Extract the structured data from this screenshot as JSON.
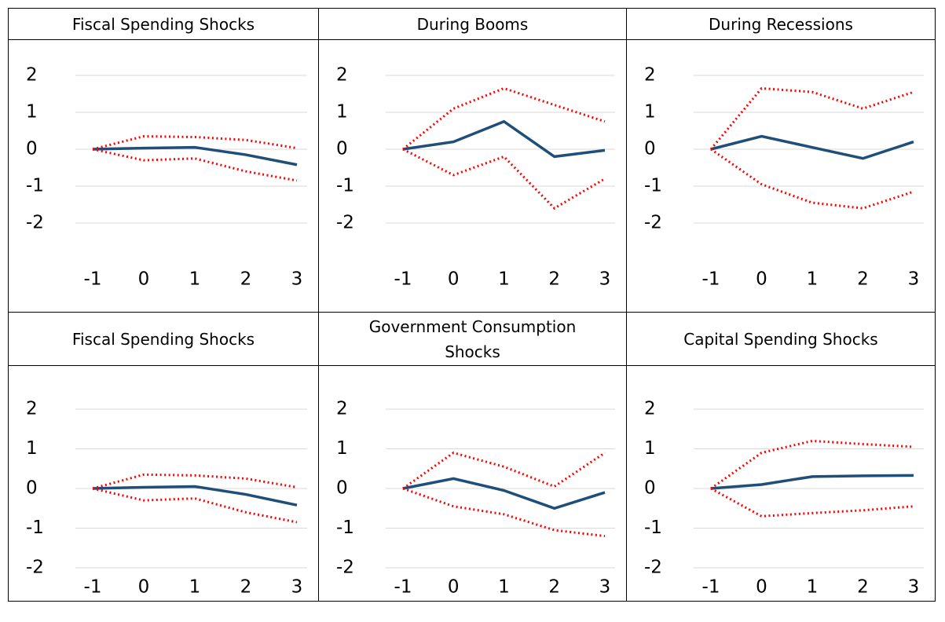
{
  "chart_data": [
    {
      "type": "line",
      "title": "Fiscal Spending Shocks",
      "categories": [
        "-1",
        "0",
        "1",
        "2",
        "3"
      ],
      "series": [
        {
          "color": "#1f4e79",
          "style": "solid",
          "values": [
            0,
            0.03,
            0.05,
            -0.15,
            -0.42
          ]
        },
        {
          "color": "#ff0000",
          "style": "dotted",
          "values": [
            0,
            0.35,
            0.33,
            0.25,
            0.03
          ]
        },
        {
          "color": "#ff0000",
          "style": "dotted",
          "values": [
            0,
            -0.3,
            -0.25,
            -0.6,
            -0.85
          ]
        }
      ],
      "ylim": [
        -2,
        2
      ],
      "yticks": [
        -2,
        -1,
        0,
        1,
        2
      ],
      "grid": true
    },
    {
      "type": "line",
      "title": "During Booms",
      "categories": [
        "-1",
        "0",
        "1",
        "2",
        "3"
      ],
      "series": [
        {
          "color": "#1f4e79",
          "style": "solid",
          "values": [
            0,
            0.2,
            0.75,
            -0.2,
            -0.03
          ]
        },
        {
          "color": "#ff0000",
          "style": "dotted",
          "values": [
            0,
            1.1,
            1.65,
            1.2,
            0.75
          ]
        },
        {
          "color": "#ff0000",
          "style": "dotted",
          "values": [
            0,
            -0.7,
            -0.2,
            -1.6,
            -0.8
          ]
        }
      ],
      "ylim": [
        -2,
        2
      ],
      "yticks": [
        -2,
        -1,
        0,
        1,
        2
      ],
      "grid": true
    },
    {
      "type": "line",
      "title": "During Recessions",
      "categories": [
        "-1",
        "0",
        "1",
        "2",
        "3"
      ],
      "series": [
        {
          "color": "#1f4e79",
          "style": "solid",
          "values": [
            0,
            0.35,
            0.05,
            -0.25,
            0.2
          ]
        },
        {
          "color": "#ff0000",
          "style": "dotted",
          "values": [
            0,
            1.65,
            1.55,
            1.1,
            1.55
          ]
        },
        {
          "color": "#ff0000",
          "style": "dotted",
          "values": [
            0,
            -0.95,
            -1.45,
            -1.6,
            -1.15
          ]
        }
      ],
      "ylim": [
        -2,
        2
      ],
      "yticks": [
        -2,
        -1,
        0,
        1,
        2
      ],
      "grid": true
    },
    {
      "type": "line",
      "title": "Fiscal Spending Shocks",
      "categories": [
        "-1",
        "0",
        "1",
        "2",
        "3"
      ],
      "series": [
        {
          "color": "#1f4e79",
          "style": "solid",
          "values": [
            0,
            0.03,
            0.05,
            -0.15,
            -0.42
          ]
        },
        {
          "color": "#ff0000",
          "style": "dotted",
          "values": [
            0,
            0.35,
            0.33,
            0.25,
            0.03
          ]
        },
        {
          "color": "#ff0000",
          "style": "dotted",
          "values": [
            0,
            -0.3,
            -0.25,
            -0.6,
            -0.85
          ]
        }
      ],
      "ylim": [
        -2,
        2
      ],
      "yticks": [
        -2,
        -1,
        0,
        1,
        2
      ],
      "grid": true
    },
    {
      "type": "line",
      "title": "Government Consumption Shocks",
      "categories": [
        "-1",
        "0",
        "1",
        "2",
        "3"
      ],
      "series": [
        {
          "color": "#1f4e79",
          "style": "solid",
          "values": [
            0,
            0.25,
            -0.05,
            -0.5,
            -0.1
          ]
        },
        {
          "color": "#ff0000",
          "style": "dotted",
          "values": [
            0,
            0.9,
            0.55,
            0.05,
            0.9
          ]
        },
        {
          "color": "#ff0000",
          "style": "dotted",
          "values": [
            0,
            -0.45,
            -0.65,
            -1.05,
            -1.2
          ]
        }
      ],
      "ylim": [
        -2,
        2
      ],
      "yticks": [
        -2,
        -1,
        0,
        1,
        2
      ],
      "grid": true
    },
    {
      "type": "line",
      "title": "Capital Spending Shocks",
      "categories": [
        "-1",
        "0",
        "1",
        "2",
        "3"
      ],
      "series": [
        {
          "color": "#1f4e79",
          "style": "solid",
          "values": [
            0,
            0.1,
            0.3,
            0.32,
            0.33
          ]
        },
        {
          "color": "#ff0000",
          "style": "dotted",
          "values": [
            0,
            0.9,
            1.2,
            1.12,
            1.05
          ]
        },
        {
          "color": "#ff0000",
          "style": "dotted",
          "values": [
            0,
            -0.7,
            -0.62,
            -0.55,
            -0.45
          ]
        }
      ],
      "ylim": [
        -2,
        2
      ],
      "yticks": [
        -2,
        -1,
        0,
        1,
        2
      ],
      "grid": true
    }
  ]
}
